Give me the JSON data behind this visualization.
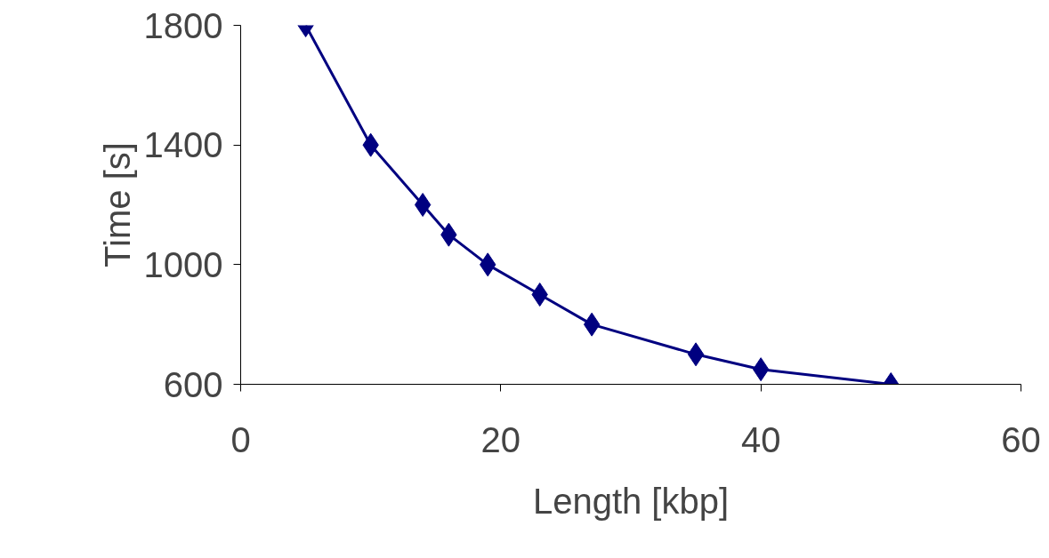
{
  "chart_data": {
    "type": "line",
    "xlabel": "Length [kbp]",
    "ylabel": "Time [s]",
    "x": [
      5,
      10,
      14,
      16,
      19,
      23,
      27,
      35,
      40,
      50
    ],
    "series": [
      {
        "color": "#000080",
        "values": [
          1800,
          1400,
          1200,
          1100,
          1000,
          900,
          800,
          700,
          650,
          600
        ]
      }
    ],
    "xlim": [
      0,
      60
    ],
    "ylim": [
      600,
      1800
    ],
    "xticks": [
      0,
      20,
      40,
      60
    ],
    "yticks": [
      600,
      1000,
      1400,
      1800
    ],
    "marker": "diamond",
    "line_style": "solid"
  }
}
